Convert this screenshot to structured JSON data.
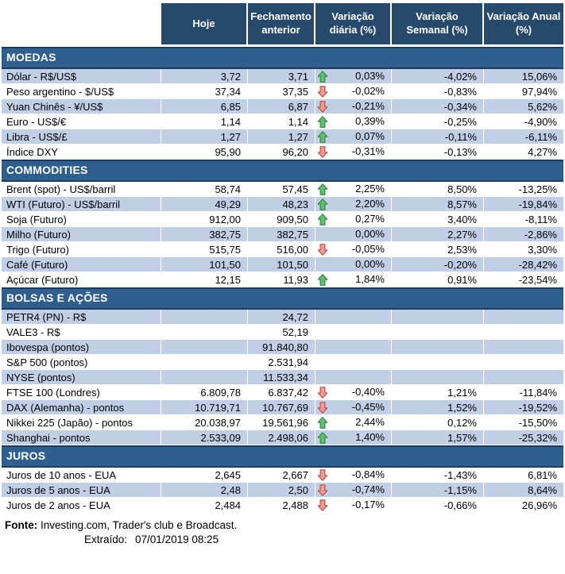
{
  "colors": {
    "header_bg": "#26496C",
    "band_bg": "#2F5F8F",
    "band_border": "#1E3A5F",
    "row_shaded": "#C0CFE5",
    "row_plain": "#FFFFFF",
    "arrow_up_fill": "#63BE72",
    "arrow_up_stroke": "#2E8540",
    "arrow_down_fill": "#EE9D96",
    "arrow_down_stroke": "#B84A42"
  },
  "table": {
    "columns": [
      "Hoje",
      "Fechamento anterior",
      "Variação diária (%)",
      "Variação Semanal (%)",
      "Variação Anual (%)"
    ]
  },
  "sections": [
    {
      "title": "MOEDAS",
      "rows": [
        {
          "label": "Dólar - R$/US$",
          "hoje": "3,72",
          "fechamento": "3,71",
          "arrow": "up",
          "diaria": "0,03%",
          "semanal": "-4,02%",
          "anual": "15,06%",
          "shaded": true
        },
        {
          "label": "Peso argentino - $/US$",
          "hoje": "37,34",
          "fechamento": "37,35",
          "arrow": "down",
          "diaria": "-0,02%",
          "semanal": "-0,83%",
          "anual": "97,94%",
          "shaded": false
        },
        {
          "label": "Yuan Chinês - ¥/US$",
          "hoje": "6,85",
          "fechamento": "6,87",
          "arrow": "down",
          "diaria": "-0,21%",
          "semanal": "-0,34%",
          "anual": "5,62%",
          "shaded": true
        },
        {
          "label": "Euro - US$/€",
          "hoje": "1,14",
          "fechamento": "1,14",
          "arrow": "up",
          "diaria": "0,39%",
          "semanal": "-0,25%",
          "anual": "-4,90%",
          "shaded": false
        },
        {
          "label": "Libra - US$/£",
          "hoje": "1,27",
          "fechamento": "1,27",
          "arrow": "up",
          "diaria": "0,07%",
          "semanal": "-0,11%",
          "anual": "-6,11%",
          "shaded": true
        },
        {
          "label": "Índice DXY",
          "hoje": "95,90",
          "fechamento": "96,20",
          "arrow": "down",
          "diaria": "-0,31%",
          "semanal": "-0,13%",
          "anual": "4,27%",
          "shaded": false
        }
      ]
    },
    {
      "title": "COMMODITIES",
      "rows": [
        {
          "label": "Brent (spot) - US$/barril",
          "hoje": "58,74",
          "fechamento": "57,45",
          "arrow": "up",
          "diaria": "2,25%",
          "semanal": "8,50%",
          "anual": "-13,25%",
          "shaded": false
        },
        {
          "label": "WTI (Futuro) - US$/barril",
          "hoje": "49,29",
          "fechamento": "48,23",
          "arrow": "up",
          "diaria": "2,20%",
          "semanal": "8,57%",
          "anual": "-19,84%",
          "shaded": true
        },
        {
          "label": "Soja (Futuro)",
          "hoje": "912,00",
          "fechamento": "909,50",
          "arrow": "up",
          "diaria": "0,27%",
          "semanal": "3,40%",
          "anual": "-8,11%",
          "shaded": false
        },
        {
          "label": "Milho (Futuro)",
          "hoje": "382,75",
          "fechamento": "382,75",
          "arrow": null,
          "diaria": "0,00%",
          "semanal": "2,27%",
          "anual": "-2,86%",
          "shaded": true
        },
        {
          "label": "Trigo (Futuro)",
          "hoje": "515,75",
          "fechamento": "516,00",
          "arrow": "down",
          "diaria": "-0,05%",
          "semanal": "2,53%",
          "anual": "3,30%",
          "shaded": false
        },
        {
          "label": "Café (Futuro)",
          "hoje": "101,50",
          "fechamento": "101,50",
          "arrow": null,
          "diaria": "0,00%",
          "semanal": "-0,20%",
          "anual": "-28,42%",
          "shaded": true
        },
        {
          "label": "Açúcar (Futuro)",
          "hoje": "12,15",
          "fechamento": "11,93",
          "arrow": "up",
          "diaria": "1,84%",
          "semanal": "0,91%",
          "anual": "-23,54%",
          "shaded": false
        }
      ]
    },
    {
      "title": "BOLSAS E AÇÕES",
      "rows": [
        {
          "label": "PETR4 (PN) - R$",
          "hoje": "",
          "fechamento": "24,72",
          "arrow": null,
          "diaria": "",
          "semanal": "",
          "anual": "",
          "shaded": true
        },
        {
          "label": "VALE3 - R$",
          "hoje": "",
          "fechamento": "52,19",
          "arrow": null,
          "diaria": "",
          "semanal": "",
          "anual": "",
          "shaded": false
        },
        {
          "label": "Ibovespa (pontos)",
          "hoje": "",
          "fechamento": "91.840,80",
          "arrow": null,
          "diaria": "",
          "semanal": "",
          "anual": "",
          "shaded": true
        },
        {
          "label": "S&P 500 (pontos)",
          "hoje": "",
          "fechamento": "2.531,94",
          "arrow": null,
          "diaria": "",
          "semanal": "",
          "anual": "",
          "shaded": false
        },
        {
          "label": "NYSE (pontos)",
          "hoje": "",
          "fechamento": "11.533,34",
          "arrow": null,
          "diaria": "",
          "semanal": "",
          "anual": "",
          "shaded": true
        },
        {
          "label": "FTSE 100 (Londres)",
          "hoje": "6.809,78",
          "fechamento": "6.837,42",
          "arrow": "down",
          "diaria": "-0,40%",
          "semanal": "1,21%",
          "anual": "-11,84%",
          "shaded": false
        },
        {
          "label": "DAX (Alemanha) - pontos",
          "hoje": "10.719,71",
          "fechamento": "10.767,69",
          "arrow": "down",
          "diaria": "-0,45%",
          "semanal": "1,52%",
          "anual": "-19,52%",
          "shaded": true
        },
        {
          "label": "Nikkei 225 (Japão) - pontos",
          "hoje": "20.038,97",
          "fechamento": "19.561,96",
          "arrow": "up",
          "diaria": "2,44%",
          "semanal": "0,12%",
          "anual": "-15,50%",
          "shaded": false
        },
        {
          "label": "Shanghai - pontos",
          "hoje": "2.533,09",
          "fechamento": "2.498,06",
          "arrow": "up",
          "diaria": "1,40%",
          "semanal": "1,57%",
          "anual": "-25,32%",
          "shaded": true
        }
      ]
    },
    {
      "title": "JUROS",
      "rows": [
        {
          "label": "Juros de 10 anos - EUA",
          "hoje": "2,645",
          "fechamento": "2,667",
          "arrow": "down",
          "diaria": "-0,84%",
          "semanal": "-1,43%",
          "anual": "6,81%",
          "shaded": false
        },
        {
          "label": "Juros de 5 anos - EUA",
          "hoje": "2,48",
          "fechamento": "2,50",
          "arrow": "down",
          "diaria": "-0,74%",
          "semanal": "-1,15%",
          "anual": "8,64%",
          "shaded": true
        },
        {
          "label": "Juros de 2 anos - EUA",
          "hoje": "2,484",
          "fechamento": "2,488",
          "arrow": "down",
          "diaria": "-0,17%",
          "semanal": "-0,66%",
          "anual": "26,96%",
          "shaded": false
        }
      ]
    }
  ],
  "footer": {
    "fonte_label": "Fonte:",
    "fonte_text": "Investing.com, Trader's club e Broadcast.",
    "extraido_label": "Extraído:",
    "extraido_value": "07/01/2019 08:25"
  }
}
